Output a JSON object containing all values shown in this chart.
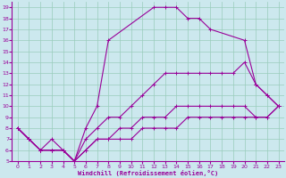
{
  "xlabel": "Windchill (Refroidissement éolien,°C)",
  "bg_color": "#cce8ee",
  "line_color": "#990099",
  "grid_color": "#99ccbb",
  "xlim": [
    -0.5,
    23.5
  ],
  "ylim": [
    5,
    19.5
  ],
  "xticks": [
    0,
    1,
    2,
    3,
    4,
    5,
    6,
    7,
    8,
    9,
    10,
    11,
    12,
    13,
    14,
    15,
    16,
    17,
    18,
    19,
    20,
    21,
    22,
    23
  ],
  "yticks": [
    5,
    6,
    7,
    8,
    9,
    10,
    11,
    12,
    13,
    14,
    15,
    16,
    17,
    18,
    19
  ],
  "series": [
    {
      "x": [
        0,
        1,
        2,
        3,
        4,
        5,
        6,
        7,
        8,
        12,
        13,
        14,
        15,
        16,
        17,
        20,
        21,
        22,
        23
      ],
      "y": [
        8,
        7,
        6,
        7,
        6,
        5,
        8,
        10,
        16,
        19,
        19,
        19,
        18,
        18,
        17,
        16,
        12,
        11,
        10
      ]
    },
    {
      "x": [
        0,
        1,
        2,
        3,
        4,
        5,
        6,
        7,
        8,
        9,
        10,
        11,
        12,
        13,
        14,
        15,
        16,
        17,
        18,
        19,
        20,
        21,
        22,
        23
      ],
      "y": [
        8,
        7,
        6,
        6,
        6,
        5,
        7,
        8,
        9,
        9,
        10,
        11,
        12,
        13,
        13,
        13,
        13,
        13,
        13,
        13,
        14,
        12,
        11,
        10
      ]
    },
    {
      "x": [
        0,
        1,
        2,
        3,
        4,
        5,
        6,
        7,
        8,
        9,
        10,
        11,
        12,
        13,
        14,
        15,
        16,
        17,
        18,
        19,
        20,
        21,
        22,
        23
      ],
      "y": [
        8,
        7,
        6,
        6,
        6,
        5,
        6,
        7,
        7,
        8,
        8,
        9,
        9,
        9,
        10,
        10,
        10,
        10,
        10,
        10,
        10,
        9,
        9,
        10
      ]
    },
    {
      "x": [
        0,
        1,
        2,
        3,
        4,
        5,
        6,
        7,
        8,
        9,
        10,
        11,
        12,
        13,
        14,
        15,
        16,
        17,
        18,
        19,
        20,
        21,
        22,
        23
      ],
      "y": [
        8,
        7,
        6,
        6,
        6,
        5,
        6,
        7,
        7,
        7,
        7,
        8,
        8,
        8,
        8,
        9,
        9,
        9,
        9,
        9,
        9,
        9,
        9,
        10
      ]
    }
  ]
}
